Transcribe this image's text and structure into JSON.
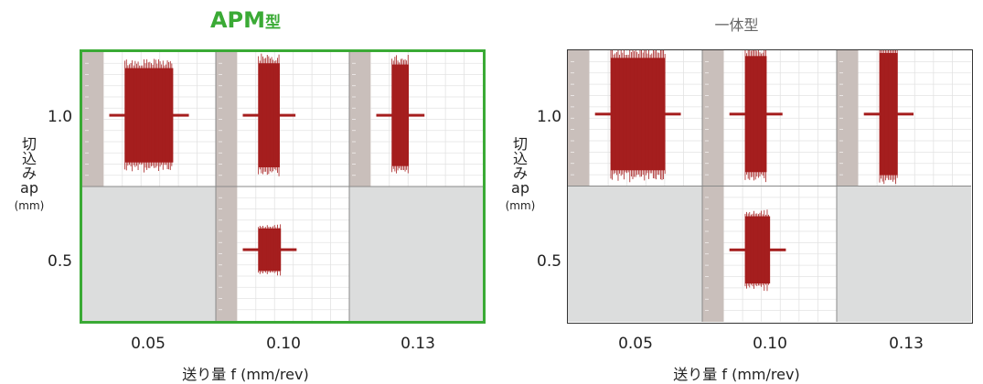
{
  "chart_data": [
    {
      "type": "heatmap",
      "title": "APM型",
      "title_main": "APM",
      "title_suffix": "型",
      "title_color": "#3aaa35",
      "frame_color": "#3aaa35",
      "xlabel": "送り量 f (mm/rev)",
      "ylabel_chars": [
        "切",
        "込",
        "み",
        "ap"
      ],
      "ylabel_unit": "(mm)",
      "x_ticks": [
        "0.05",
        "0.10",
        "0.13"
      ],
      "y_ticks": [
        "1.0",
        "0.5"
      ],
      "waveform_color": "#a51e1e",
      "cells": [
        {
          "f": 0.05,
          "ap": 1.0,
          "tested": true,
          "amplitude": 0.78,
          "duration": 0.43
        },
        {
          "f": 0.1,
          "ap": 1.0,
          "tested": true,
          "amplitude": 0.86,
          "duration": 0.19
        },
        {
          "f": 0.13,
          "ap": 1.0,
          "tested": true,
          "amplitude": 0.84,
          "duration": 0.15
        },
        {
          "f": 0.05,
          "ap": 0.5,
          "tested": false
        },
        {
          "f": 0.1,
          "ap": 0.5,
          "tested": true,
          "amplitude": 0.35,
          "duration": 0.2
        },
        {
          "f": 0.13,
          "ap": 0.5,
          "tested": false
        }
      ]
    },
    {
      "type": "heatmap",
      "title": "一体型",
      "title_color": "#666666",
      "frame_color": "#333333",
      "xlabel": "送り量 f (mm/rev)",
      "ylabel_chars": [
        "切",
        "込",
        "み",
        "ap"
      ],
      "ylabel_unit": "(mm)",
      "x_ticks": [
        "0.05",
        "0.10",
        "0.13"
      ],
      "y_ticks": [
        "1.0",
        "0.5"
      ],
      "waveform_color": "#a51e1e",
      "cells": [
        {
          "f": 0.05,
          "ap": 1.0,
          "tested": true,
          "amplitude": 0.92,
          "duration": 0.48
        },
        {
          "f": 0.1,
          "ap": 1.0,
          "tested": true,
          "amplitude": 0.95,
          "duration": 0.19
        },
        {
          "f": 0.13,
          "ap": 1.0,
          "tested": true,
          "amplitude": 1.0,
          "duration": 0.16
        },
        {
          "f": 0.05,
          "ap": 0.5,
          "tested": false
        },
        {
          "f": 0.1,
          "ap": 0.5,
          "tested": true,
          "amplitude": 0.55,
          "duration": 0.22
        },
        {
          "f": 0.13,
          "ap": 0.5,
          "tested": false
        }
      ]
    }
  ]
}
